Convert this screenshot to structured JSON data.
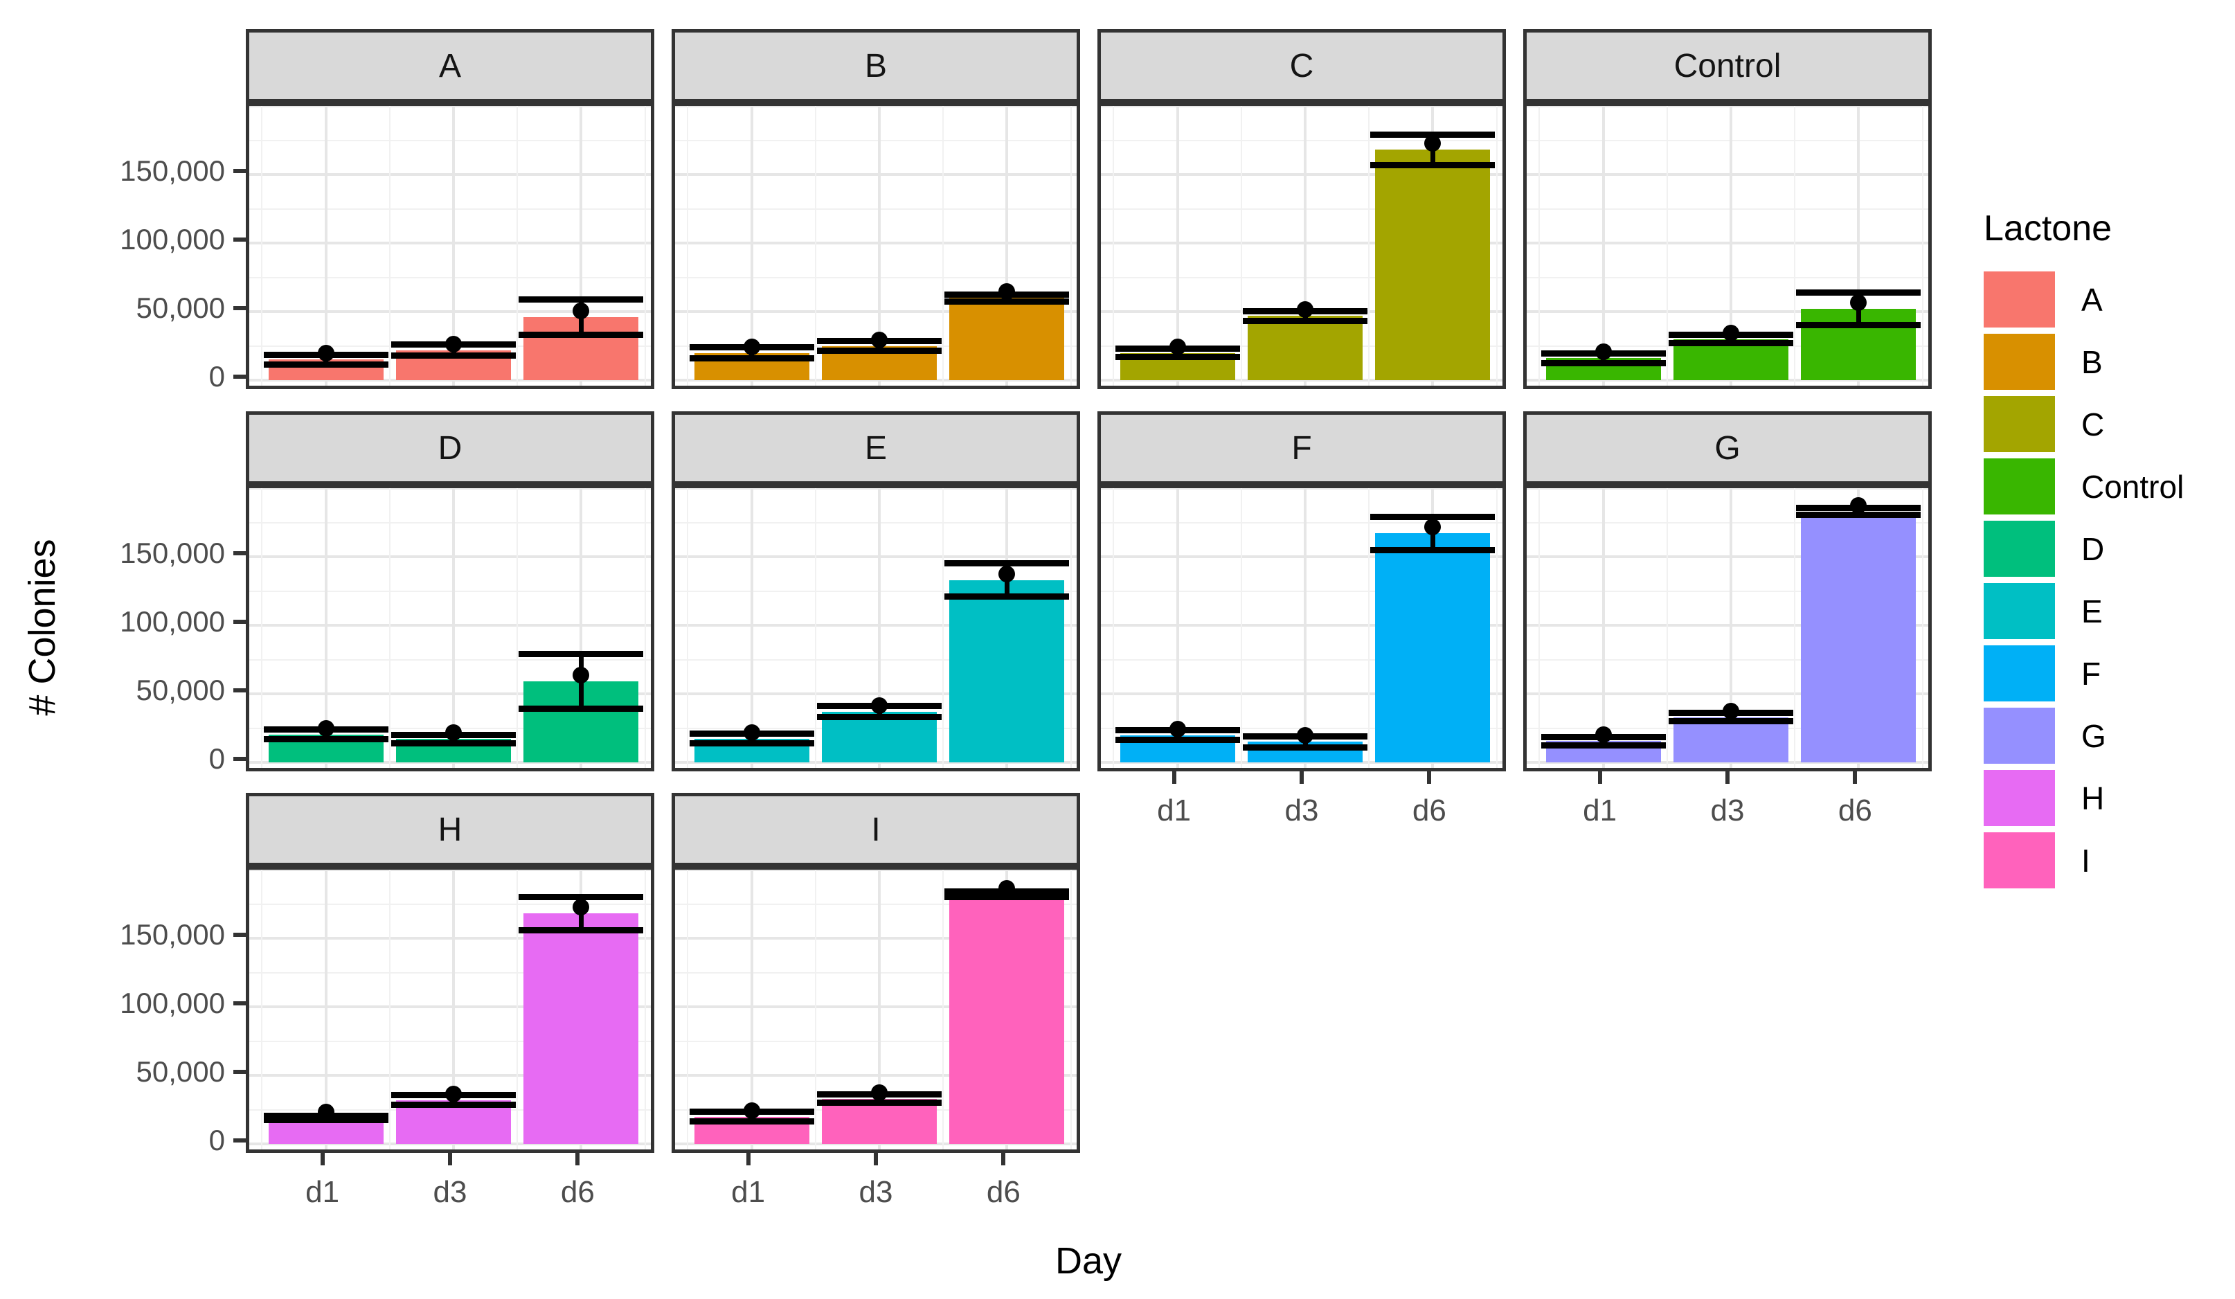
{
  "figure": {
    "y_axis_title": "# Colonies",
    "x_axis_title": "Day"
  },
  "legend": {
    "title": "Lactone",
    "items": [
      {
        "label": "A",
        "color": "#F8766D"
      },
      {
        "label": "B",
        "color": "#D89000"
      },
      {
        "label": "C",
        "color": "#A3A500"
      },
      {
        "label": "Control",
        "color": "#39B600"
      },
      {
        "label": "D",
        "color": "#00BF7D"
      },
      {
        "label": "E",
        "color": "#00BFC4"
      },
      {
        "label": "F",
        "color": "#00B0F6"
      },
      {
        "label": "G",
        "color": "#9590FF"
      },
      {
        "label": "H",
        "color": "#E76BF3"
      },
      {
        "label": "I",
        "color": "#FF62BC"
      }
    ]
  },
  "chart_data": {
    "type": "bar",
    "title": "",
    "xlabel": "Day",
    "ylabel": "# Colonies",
    "x_categories": [
      "d1",
      "d3",
      "d6"
    ],
    "y_ticks": [
      {
        "label": "150,000",
        "value": 150000
      },
      {
        "label": "100,000",
        "value": 100000
      },
      {
        "label": "50,000",
        "value": 50000
      },
      {
        "label": "0",
        "value": 0
      }
    ],
    "ylim": [
      -9000,
      200000
    ],
    "grid": {
      "major_step": 50000,
      "minor_step": 25000
    },
    "legend_position": "right",
    "facets": [
      {
        "name": "A",
        "color": "#F8766D",
        "means": [
          15000,
          22000,
          46000
        ],
        "sds": [
          3500,
          4000,
          13000
        ]
      },
      {
        "name": "B",
        "color": "#D89000",
        "means": [
          20000,
          25000,
          60000
        ],
        "sds": [
          4000,
          3500,
          2500
        ]
      },
      {
        "name": "C",
        "color": "#A3A500",
        "means": [
          20000,
          47000,
          168000
        ],
        "sds": [
          3000,
          3500,
          11000
        ]
      },
      {
        "name": "Control",
        "color": "#39B600",
        "means": [
          16000,
          30000,
          52000
        ],
        "sds": [
          3500,
          3000,
          12000
        ]
      },
      {
        "name": "D",
        "color": "#00BF7D",
        "means": [
          20500,
          17000,
          59000
        ],
        "sds": [
          3500,
          3000,
          20000
        ]
      },
      {
        "name": "E",
        "color": "#00BFC4",
        "means": [
          17500,
          37000,
          133000
        ],
        "sds": [
          3500,
          4000,
          12000
        ]
      },
      {
        "name": "F",
        "color": "#00B0F6",
        "means": [
          20000,
          15000,
          167000
        ],
        "sds": [
          3500,
          4000,
          12000
        ]
      },
      {
        "name": "G",
        "color": "#9590FF",
        "means": [
          15500,
          33000,
          183000
        ],
        "sds": [
          3000,
          3000,
          2500
        ]
      },
      {
        "name": "H",
        "color": "#E76BF3",
        "means": [
          19000,
          32000,
          168000
        ],
        "sds": [
          1500,
          3500,
          12000
        ]
      },
      {
        "name": "I",
        "color": "#FF62BC",
        "means": [
          20000,
          33000,
          182000
        ],
        "sds": [
          3500,
          3000,
          2000
        ]
      }
    ]
  }
}
